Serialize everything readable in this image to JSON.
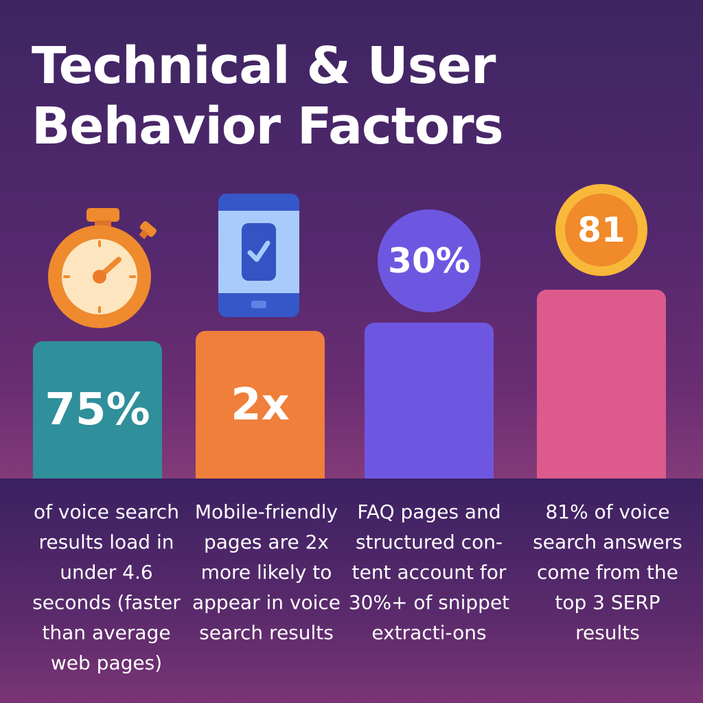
{
  "title_line1": "Technical & User",
  "title_line2": "Behavior Factors",
  "stats": [
    {
      "value": "75%",
      "caption": "of voice search results load in under 4.6 seconds (faster than average web pages)",
      "icon": "stopwatch-icon",
      "color": "#2f8f9a"
    },
    {
      "value": "2x",
      "caption": "Mobile-friendly pages are 2x more likely to appear in voice search results",
      "icon": "mobile-check-icon",
      "color": "#ef7f3a"
    },
    {
      "value": "30%",
      "caption": "FAQ pages and structured con-tent account for 30%+ of snippet extracti-ons",
      "icon": "percent-badge",
      "color": "#6e57e0"
    },
    {
      "value": "81",
      "caption": "81% of voice search answers come from the top 3 SERP results",
      "icon": "number-badge",
      "color": "#dd5a8c"
    }
  ]
}
